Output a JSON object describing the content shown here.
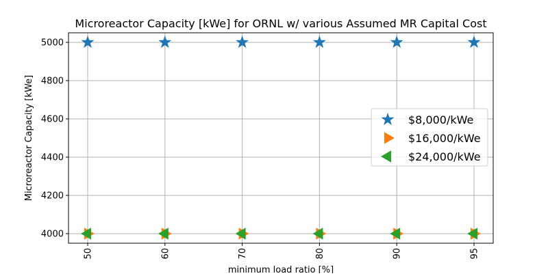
{
  "chart_data": {
    "type": "scatter",
    "title": "Microreactor Capacity [kWe] for ORNL w/ various Assumed MR Capital Cost",
    "xlabel": "minimum load ratio [%]",
    "ylabel": "Microreactor Capacity [kWe]",
    "categories": [
      "50",
      "60",
      "70",
      "80",
      "90",
      "95"
    ],
    "yticks": [
      4000,
      4200,
      4400,
      4600,
      4800,
      5000
    ],
    "ylim": [
      3950,
      5050
    ],
    "grid": true,
    "legend_position": "center-right",
    "series": [
      {
        "name": "$8,000/kWe",
        "values": [
          5000,
          5000,
          5000,
          5000,
          5000,
          5000
        ],
        "marker": "star",
        "color": "#1f77b4"
      },
      {
        "name": "$16,000/kWe",
        "values": [
          4000,
          4000,
          4000,
          4000,
          4000,
          4000
        ],
        "marker": "triangle-right",
        "color": "#ff7f0e"
      },
      {
        "name": "$24,000/kWe",
        "values": [
          4000,
          4000,
          4000,
          4000,
          4000,
          4000
        ],
        "marker": "triangle-left",
        "color": "#2ca02c"
      }
    ]
  }
}
